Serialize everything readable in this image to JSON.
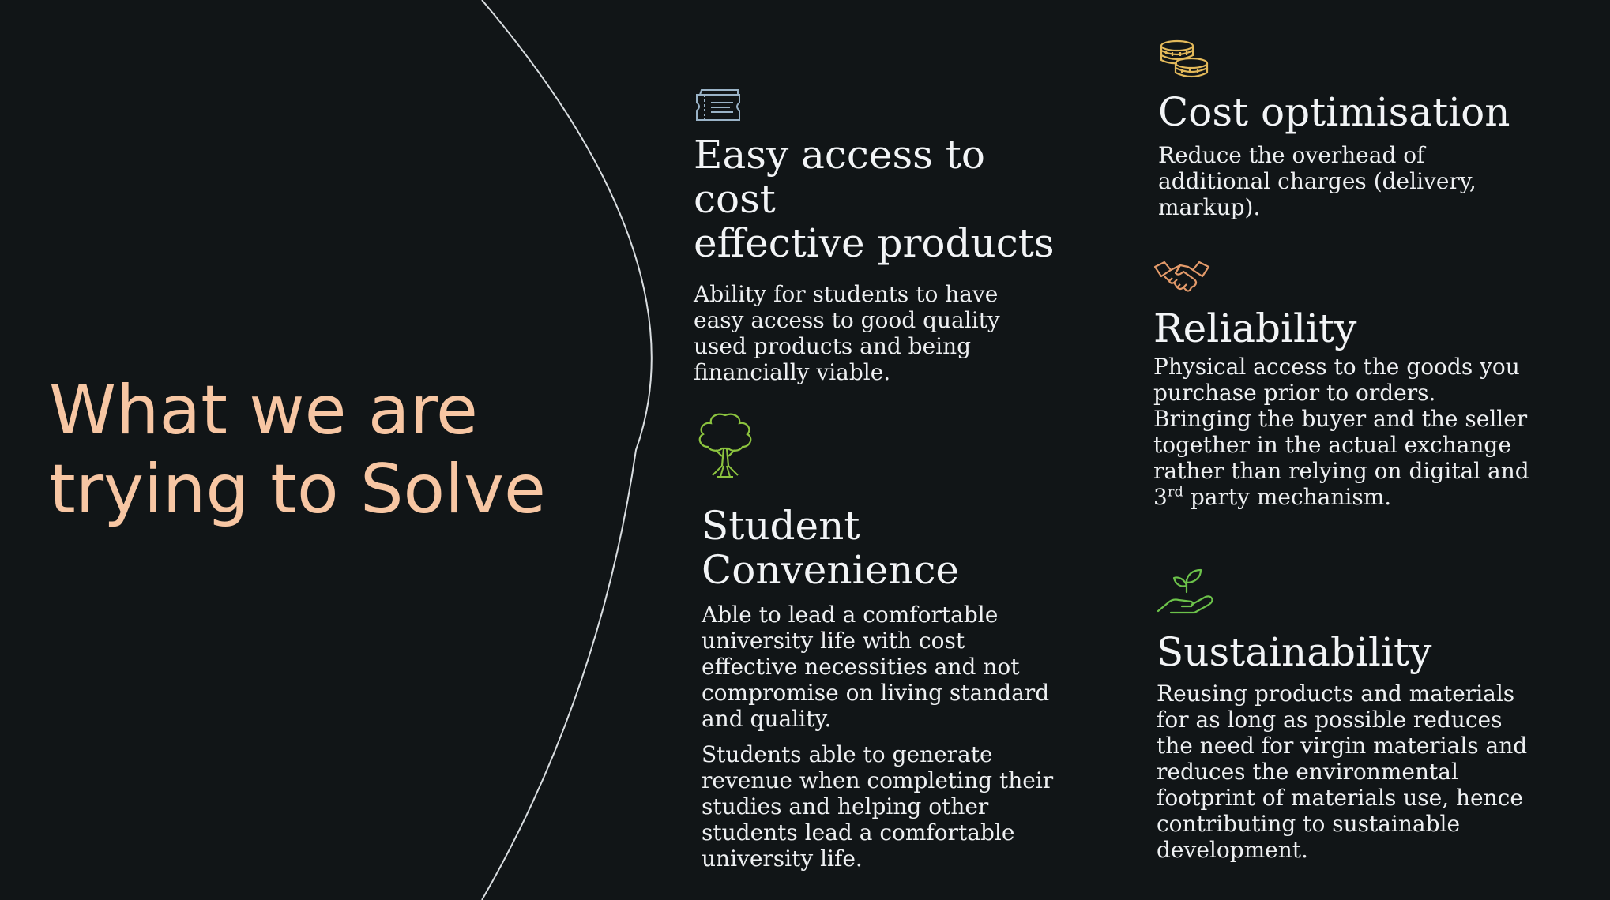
{
  "slide": {
    "title_line1": "What we are",
    "title_line2": "trying to Solve"
  },
  "colors": {
    "background": "#111517",
    "title": "#f7c6a3",
    "text": "#eef0f2",
    "arc": "#d9dde0"
  },
  "items": {
    "easy_access": {
      "icon": "ticket-icon",
      "heading_line1": "Easy access to cost",
      "heading_line2": "effective products",
      "body": [
        "Ability for students to have",
        "easy access to good quality",
        "used products and being",
        "financially viable."
      ]
    },
    "student_convenience": {
      "icon": "tree-icon",
      "heading": "Student Convenience",
      "para1": [
        "Able to lead a comfortable",
        "university life with cost",
        "effective necessities and not",
        "compromise on living standard",
        "and quality."
      ],
      "para2": [
        "Students able to generate",
        "revenue when completing their",
        "studies and helping other",
        "students lead a comfortable",
        "university life."
      ]
    },
    "cost_optimisation": {
      "icon": "coins-icon",
      "heading": "Cost optimisation",
      "body": [
        "Reduce the overhead of",
        "additional charges (delivery,",
        "markup)."
      ]
    },
    "reliability": {
      "icon": "handshake-icon",
      "heading": "Reliability",
      "body": [
        "Physical access to the goods you",
        "purchase prior to orders.",
        "Bringing the buyer and the seller",
        "together in the actual exchange",
        "rather than relying on digital and"
      ],
      "last_line_prefix": "3",
      "last_line_sup": "rd",
      "last_line_suffix": " party mechanism."
    },
    "sustainability": {
      "icon": "plant-in-hand-icon",
      "heading": "Sustainability",
      "body": [
        "Reusing products and materials",
        "for as long as possible reduces",
        "the need for virgin materials and",
        "reduces the environmental",
        "footprint of materials use, hence",
        "contributing to sustainable",
        "development."
      ]
    }
  }
}
